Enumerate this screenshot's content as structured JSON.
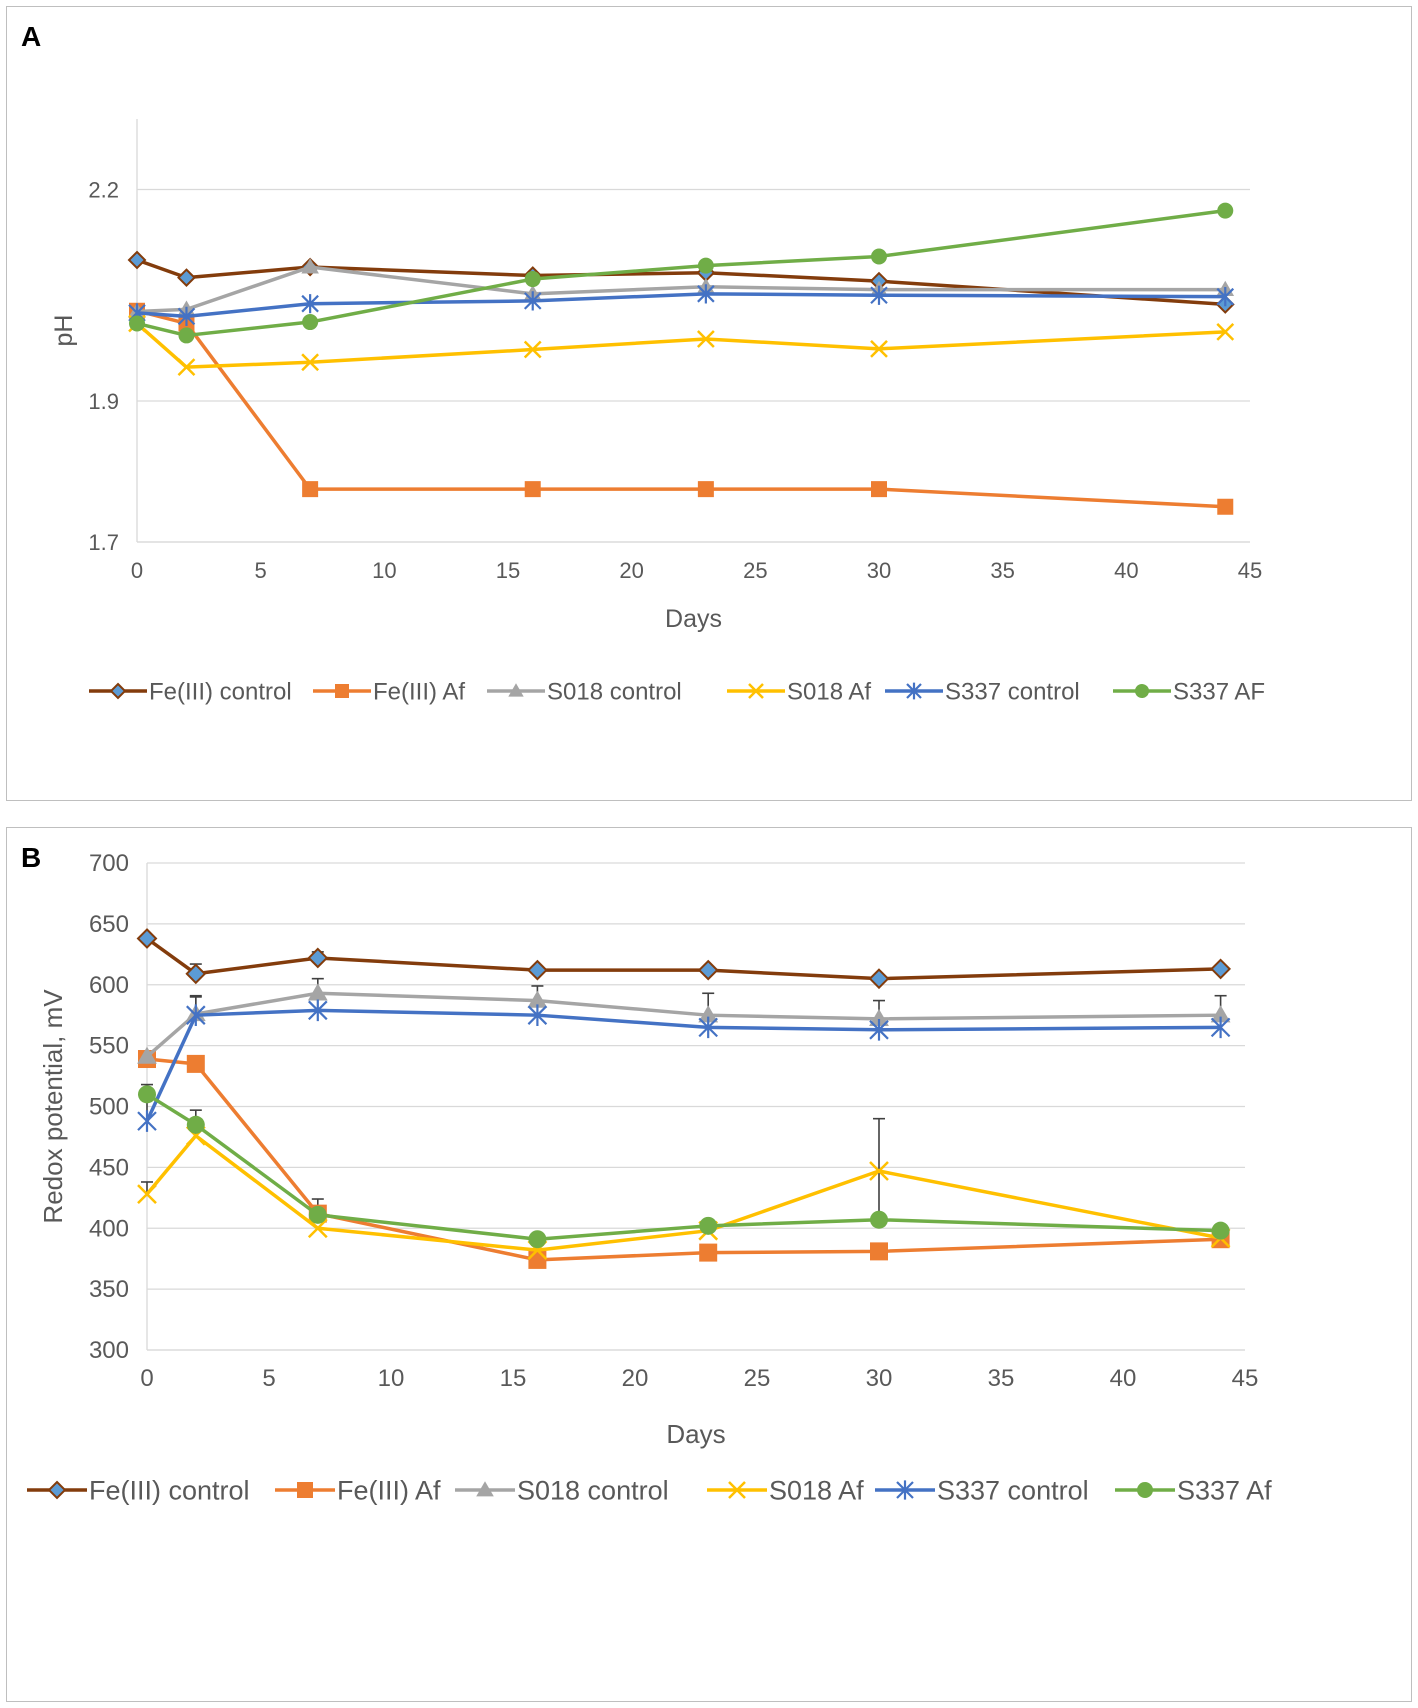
{
  "chart_data": [
    {
      "panel": "A",
      "type": "line",
      "title": "",
      "xlabel": "Days",
      "ylabel": "pH",
      "xlim": [
        0,
        45
      ],
      "ylim": [
        1.7,
        2.3
      ],
      "xticks": [
        0,
        5,
        10,
        15,
        20,
        25,
        30,
        35,
        40,
        45
      ],
      "yticks": [
        1.7,
        1.9,
        2.2
      ],
      "x": [
        0,
        2,
        7,
        16,
        23,
        30,
        44
      ],
      "series": [
        {
          "name": "Fe(III) control",
          "color": "#833c0c",
          "marker": "diamond",
          "values": [
            2.1,
            2.075,
            2.09,
            2.078,
            2.082,
            2.07,
            2.037
          ]
        },
        {
          "name": "Fe(III) Af",
          "color": "#ed7d31",
          "marker": "square",
          "values": [
            2.028,
            2.01,
            1.775,
            1.775,
            1.775,
            1.775,
            1.75
          ]
        },
        {
          "name": "S018 control",
          "color": "#a5a5a5",
          "marker": "triangle",
          "values": [
            2.027,
            2.03,
            2.09,
            2.052,
            2.062,
            2.058,
            2.058
          ]
        },
        {
          "name": "S018 Af",
          "color": "#ffc000",
          "marker": "x",
          "values": [
            2.01,
            1.948,
            1.955,
            1.973,
            1.988,
            1.974,
            1.998
          ]
        },
        {
          "name": "S337 control",
          "color": "#4472c4",
          "marker": "star",
          "values": [
            2.025,
            2.02,
            2.038,
            2.042,
            2.052,
            2.05,
            2.048
          ]
        },
        {
          "name": "S337 AF",
          "color": "#70ad47",
          "marker": "circle",
          "values": [
            2.01,
            1.993,
            2.012,
            2.073,
            2.092,
            2.105,
            2.17
          ]
        }
      ]
    },
    {
      "panel": "B",
      "type": "line",
      "title": "",
      "xlabel": "Days",
      "ylabel": "Redox potential, mV",
      "xlim": [
        0,
        45
      ],
      "ylim": [
        300,
        700
      ],
      "xticks": [
        0,
        5,
        10,
        15,
        20,
        25,
        30,
        35,
        40,
        45
      ],
      "yticks": [
        300,
        350,
        400,
        450,
        500,
        550,
        600,
        650,
        700
      ],
      "x": [
        0,
        2,
        7,
        16,
        23,
        30,
        44
      ],
      "series": [
        {
          "name": "Fe(III) control",
          "color": "#833c0c",
          "marker": "diamond",
          "values": [
            638,
            609,
            622,
            612,
            612,
            605,
            613
          ],
          "errors": [
            0,
            8,
            5,
            0,
            0,
            0,
            0
          ]
        },
        {
          "name": "Fe(III) Af",
          "color": "#ed7d31",
          "marker": "square",
          "values": [
            539,
            535,
            412,
            374,
            380,
            381,
            391
          ],
          "errors": [
            0,
            0,
            0,
            0,
            0,
            0,
            6
          ]
        },
        {
          "name": "S018 control",
          "color": "#a5a5a5",
          "marker": "triangle",
          "values": [
            541,
            576,
            593,
            587,
            575,
            572,
            575
          ],
          "errors": [
            0,
            15,
            12,
            12,
            18,
            15,
            16
          ]
        },
        {
          "name": "S018 Af",
          "color": "#ffc000",
          "marker": "x",
          "values": [
            428,
            476,
            400,
            382,
            398,
            447,
            392
          ],
          "errors": [
            10,
            10,
            0,
            0,
            0,
            0,
            0
          ]
        },
        {
          "name": "S337 control",
          "color": "#4472c4",
          "marker": "star",
          "values": [
            488,
            575,
            579,
            575,
            565,
            563,
            565
          ],
          "errors": [
            18,
            15,
            0,
            0,
            8,
            0,
            0
          ]
        },
        {
          "name": "S337 Af",
          "color": "#70ad47",
          "marker": "circle",
          "values": [
            510,
            485,
            411,
            391,
            402,
            407,
            398
          ],
          "errors": [
            8,
            12,
            13,
            0,
            0,
            83,
            0
          ]
        }
      ]
    }
  ],
  "panels": {
    "a_label": "A",
    "b_label": "B"
  }
}
